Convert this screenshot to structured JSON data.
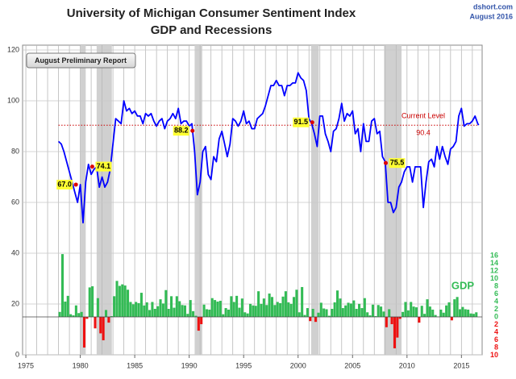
{
  "chart_data": {
    "type": "line",
    "title": "University of Michigan Consumer Sentiment Index",
    "subtitle": "GDP and Recessions",
    "source": "dshort.com",
    "date": "August 2016",
    "note": "August Preliminary Report",
    "xlim": [
      1974.7,
      2016.9
    ],
    "xticks": [
      1975,
      1980,
      1985,
      1990,
      1995,
      2000,
      2005,
      2010,
      2015
    ],
    "x_minor_ticks": [
      1975,
      1976,
      1977,
      1978,
      1979,
      1980,
      1981,
      1982,
      1983,
      1984,
      1985,
      1986,
      1987,
      1988,
      1989,
      1990,
      1991,
      1992,
      1993,
      1994,
      1995,
      1996,
      1997,
      1998,
      1999,
      2000,
      2001,
      2002,
      2003,
      2004,
      2005,
      2006,
      2007,
      2008,
      2009,
      2010,
      2011,
      2012,
      2013,
      2014,
      2015,
      2016
    ],
    "ylim": [
      0,
      120
    ],
    "yticks": [
      0,
      20,
      40,
      60,
      80,
      100,
      120
    ],
    "y2lim": [
      -9.9,
      69.7
    ],
    "y2ticks": [
      16,
      14,
      12,
      10,
      8,
      6,
      4,
      2,
      0,
      {
        "value": -2,
        "label": "2"
      },
      {
        "value": -4,
        "label": "4"
      },
      {
        "value": -6,
        "label": "6"
      },
      {
        "value": -8,
        "label": "8"
      },
      {
        "value": -10,
        "label": "10"
      }
    ],
    "grid": true,
    "recessions": [
      [
        1980.0,
        1980.5
      ],
      [
        1981.5,
        1982.9
      ],
      [
        1990.5,
        1991.2
      ],
      [
        2001.2,
        2001.9
      ],
      [
        2007.9,
        2009.5
      ]
    ],
    "reference": {
      "value": 90.4,
      "x": [
        1978,
        2016.58
      ],
      "label": "Current Level",
      "color": "#cc0000"
    },
    "annotations": [
      {
        "x": 1979.6,
        "value": 67,
        "label": "67.0"
      },
      {
        "x": 1981.1,
        "value": 74.1,
        "label": "74.1"
      },
      {
        "x": 1990.3,
        "value": 88.2,
        "label": "88.2"
      },
      {
        "x": 2001.3,
        "value": 91.5,
        "label": "91.5"
      },
      {
        "x": 2008.05,
        "value": 75.5,
        "label": "75.5"
      }
    ],
    "series": [
      {
        "color": "#0000ff",
        "x": [
          1978,
          1978.25,
          1978.5,
          1978.75,
          1979,
          1979.25,
          1979.5,
          1979.75,
          1980,
          1980.25,
          1980.5,
          1980.75,
          1981,
          1981.25,
          1981.5,
          1981.75,
          1982,
          1982.25,
          1982.5,
          1982.75,
          1983,
          1983.25,
          1983.5,
          1983.75,
          1984,
          1984.25,
          1984.5,
          1984.75,
          1985,
          1985.25,
          1985.5,
          1985.75,
          1986,
          1986.25,
          1986.5,
          1986.75,
          1987,
          1987.25,
          1987.5,
          1987.75,
          1988,
          1988.25,
          1988.5,
          1988.75,
          1989,
          1989.25,
          1989.5,
          1989.75,
          1990,
          1990.25,
          1990.5,
          1990.75,
          1991,
          1991.25,
          1991.5,
          1991.75,
          1992,
          1992.25,
          1992.5,
          1992.75,
          1993,
          1993.25,
          1993.5,
          1993.75,
          1994,
          1994.25,
          1994.5,
          1994.75,
          1995,
          1995.25,
          1995.5,
          1995.75,
          1996,
          1996.25,
          1996.5,
          1996.75,
          1997,
          1997.25,
          1997.5,
          1997.75,
          1998,
          1998.25,
          1998.5,
          1998.75,
          1999,
          1999.25,
          1999.5,
          1999.75,
          2000,
          2000.25,
          2000.5,
          2000.75,
          2001,
          2001.25,
          2001.5,
          2001.75,
          2002,
          2002.25,
          2002.5,
          2002.75,
          2003,
          2003.25,
          2003.5,
          2003.75,
          2004,
          2004.25,
          2004.5,
          2004.75,
          2005,
          2005.25,
          2005.5,
          2005.75,
          2006,
          2006.25,
          2006.5,
          2006.75,
          2007,
          2007.25,
          2007.5,
          2007.75,
          2008,
          2008.25,
          2008.5,
          2008.75,
          2009,
          2009.25,
          2009.5,
          2009.75,
          2010,
          2010.25,
          2010.5,
          2010.75,
          2011,
          2011.25,
          2011.5,
          2011.75,
          2012,
          2012.25,
          2012.5,
          2012.75,
          2013,
          2013.25,
          2013.5,
          2013.75,
          2014,
          2014.25,
          2014.5,
          2014.75,
          2015,
          2015.25,
          2015.5,
          2015.75,
          2016,
          2016.25,
          2016.5,
          2016.58
        ],
        "values": [
          84,
          83,
          80,
          76,
          72,
          68,
          64,
          60,
          67,
          52,
          68,
          75,
          71,
          73,
          74,
          66,
          70,
          66,
          68,
          73,
          83,
          93,
          92,
          91,
          100,
          96,
          97,
          95,
          96,
          94,
          94,
          91,
          95,
          94,
          95,
          92,
          90,
          92,
          93,
          89,
          92,
          93,
          95,
          93,
          97,
          91,
          92,
          92,
          90,
          91,
          80,
          63,
          68,
          80,
          82,
          71,
          69,
          78,
          76,
          85,
          88,
          83,
          78,
          83,
          93,
          92,
          90,
          92,
          96,
          91,
          92,
          89,
          89,
          93,
          94,
          95,
          98,
          102,
          106,
          106,
          108,
          106,
          106,
          102,
          106,
          106,
          107,
          107,
          111,
          109,
          108,
          104,
          93,
          91,
          87,
          82,
          94,
          94,
          87,
          84,
          80,
          88,
          89,
          93,
          99,
          92,
          95,
          94,
          96,
          87,
          89,
          80,
          91,
          84,
          84,
          92,
          93,
          87,
          88,
          78,
          76,
          60,
          60,
          56,
          58,
          66,
          68,
          72,
          74,
          74,
          68,
          74,
          74,
          74,
          58,
          68,
          76,
          77,
          74,
          82,
          77,
          82,
          78,
          75,
          81,
          82,
          84,
          94,
          97,
          90,
          91,
          91,
          92,
          94,
          91,
          90.4
        ]
      },
      {
        "name": "GDP",
        "axis": "y2",
        "type": "bar",
        "color_positive": "#33bb55",
        "color_negative": "#ee1111",
        "x": [
          1978,
          1978.25,
          1978.5,
          1978.75,
          1979,
          1979.25,
          1979.5,
          1979.75,
          1980,
          1980.25,
          1980.5,
          1980.75,
          1981,
          1981.25,
          1981.5,
          1981.75,
          1982,
          1982.25,
          1982.5,
          1982.75,
          1983,
          1983.25,
          1983.5,
          1983.75,
          1984,
          1984.25,
          1984.5,
          1984.75,
          1985,
          1985.25,
          1985.5,
          1985.75,
          1986,
          1986.25,
          1986.5,
          1986.75,
          1987,
          1987.25,
          1987.5,
          1987.75,
          1988,
          1988.25,
          1988.5,
          1988.75,
          1989,
          1989.25,
          1989.5,
          1989.75,
          1990,
          1990.25,
          1990.5,
          1990.75,
          1991,
          1991.25,
          1991.5,
          1991.75,
          1992,
          1992.25,
          1992.5,
          1992.75,
          1993,
          1993.25,
          1993.5,
          1993.75,
          1994,
          1994.25,
          1994.5,
          1994.75,
          1995,
          1995.25,
          1995.5,
          1995.75,
          1996,
          1996.25,
          1996.5,
          1996.75,
          1997,
          1997.25,
          1997.5,
          1997.75,
          1998,
          1998.25,
          1998.5,
          1998.75,
          1999,
          1999.25,
          1999.5,
          1999.75,
          2000,
          2000.25,
          2000.5,
          2000.75,
          2001,
          2001.25,
          2001.5,
          2001.75,
          2002,
          2002.25,
          2002.5,
          2002.75,
          2003,
          2003.25,
          2003.5,
          2003.75,
          2004,
          2004.25,
          2004.5,
          2004.75,
          2005,
          2005.25,
          2005.5,
          2005.75,
          2006,
          2006.25,
          2006.5,
          2006.75,
          2007,
          2007.25,
          2007.5,
          2007.75,
          2008,
          2008.25,
          2008.5,
          2008.75,
          2009,
          2009.25,
          2009.5,
          2009.75,
          2010,
          2010.25,
          2010.5,
          2010.75,
          2011,
          2011.25,
          2011.5,
          2011.75,
          2012,
          2012.25,
          2012.5,
          2012.75,
          2013,
          2013.25,
          2013.5,
          2013.75,
          2014,
          2014.25,
          2014.5,
          2014.75,
          2015,
          2015.25,
          2015.5,
          2015.75,
          2016,
          2016.25
        ],
        "values": [
          1.3,
          16.4,
          4.0,
          5.5,
          0.7,
          0.4,
          3.0,
          1.0,
          1.3,
          -8.0,
          -0.5,
          7.7,
          8.0,
          -3.0,
          4.9,
          -4.3,
          -6.1,
          1.8,
          -1.5,
          0.2,
          5.4,
          9.4,
          8.1,
          8.5,
          8.2,
          7.1,
          3.9,
          3.3,
          3.9,
          3.6,
          6.3,
          3.0,
          3.8,
          1.8,
          3.9,
          2.1,
          2.8,
          4.6,
          3.5,
          7.0,
          2.1,
          5.4,
          2.4,
          5.4,
          4.1,
          3.1,
          3.0,
          0.8,
          4.4,
          1.5,
          0.3,
          -3.6,
          -1.9,
          3.2,
          2.0,
          1.9,
          4.9,
          4.4,
          4.0,
          4.2,
          0.7,
          2.3,
          1.9,
          5.4,
          3.9,
          5.5,
          2.4,
          4.8,
          1.2,
          0.9,
          3.4,
          3.0,
          2.9,
          6.7,
          3.4,
          4.8,
          3.1,
          6.1,
          5.2,
          3.1,
          3.9,
          3.6,
          5.3,
          6.7,
          3.8,
          3.4,
          5.2,
          7.1,
          1.2,
          7.8,
          0.5,
          2.3,
          -1.1,
          2.1,
          -1.3,
          1.1,
          3.7,
          2.2,
          2.0,
          0.3,
          2.1,
          3.8,
          6.9,
          4.8,
          2.3,
          3.0,
          3.7,
          3.5,
          4.3,
          2.1,
          3.4,
          2.3,
          4.9,
          1.2,
          0.4,
          3.2,
          0.2,
          3.1,
          2.7,
          1.4,
          -2.7,
          2.0,
          -1.9,
          -8.2,
          -5.4,
          -0.5,
          1.3,
          3.9,
          1.7,
          3.9,
          2.7,
          2.5,
          -1.5,
          2.9,
          0.8,
          4.6,
          2.7,
          1.9,
          0.5,
          0.1,
          1.9,
          1.1,
          3.0,
          3.8,
          -0.9,
          4.6,
          5.2,
          2.0,
          2.6,
          2.0,
          1.9,
          0.9,
          0.8,
          1.2
        ]
      }
    ]
  }
}
